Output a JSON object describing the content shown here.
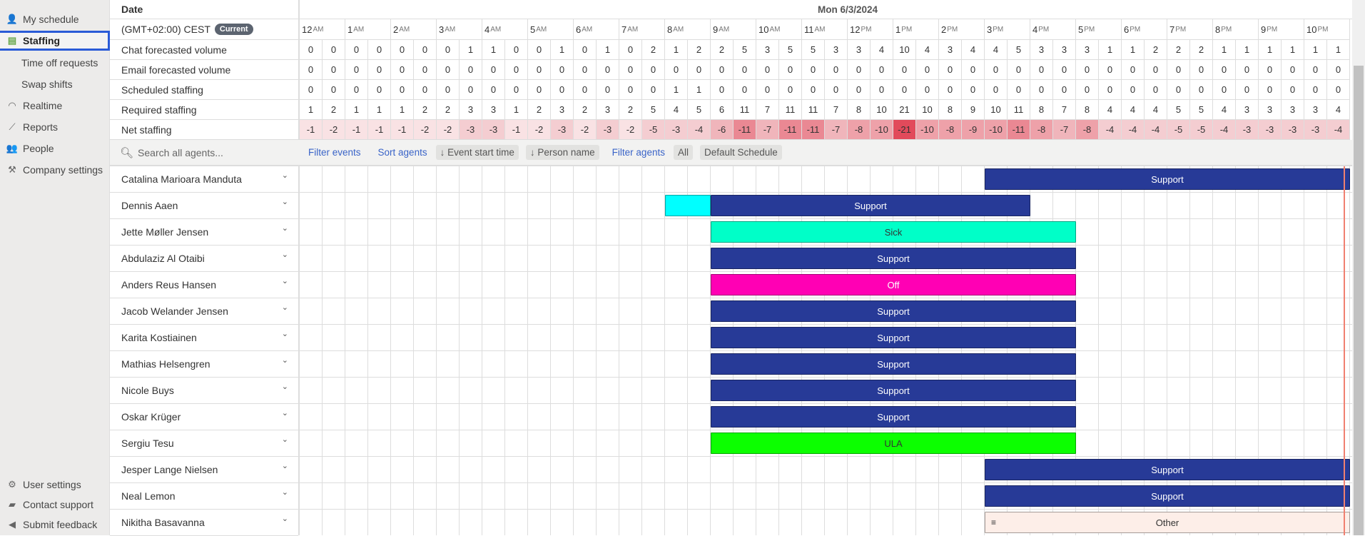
{
  "sidebar": {
    "items": [
      {
        "label": "My schedule",
        "icon": "person-icon",
        "glyph": "👤",
        "sub": false,
        "active": false
      },
      {
        "label": "Staffing",
        "icon": "staffing-icon",
        "glyph": "▤",
        "sub": false,
        "active": true
      },
      {
        "label": "Time off requests",
        "sub": true,
        "active": false
      },
      {
        "label": "Swap shifts",
        "sub": true,
        "active": false
      },
      {
        "label": "Realtime",
        "icon": "gauge-icon",
        "glyph": "◠",
        "sub": false,
        "active": false
      },
      {
        "label": "Reports",
        "icon": "chart-line-icon",
        "glyph": "⟋",
        "sub": false,
        "active": false
      },
      {
        "label": "People",
        "icon": "people-icon",
        "glyph": "👥",
        "sub": false,
        "active": false
      },
      {
        "label": "Company settings",
        "icon": "tools-icon",
        "glyph": "⚒",
        "sub": false,
        "active": false
      }
    ],
    "bottom": [
      {
        "label": "User settings",
        "icon": "gear-icon",
        "glyph": "⚙"
      },
      {
        "label": "Contact support",
        "icon": "chat-icon",
        "glyph": "▰"
      },
      {
        "label": "Submit feedback",
        "icon": "megaphone-icon",
        "glyph": "◀"
      }
    ]
  },
  "header": {
    "date_label": "Date",
    "date": "Mon 6/3/2024",
    "timezone": "(GMT+02:00) CEST",
    "current_badge": "Current"
  },
  "hours": [
    [
      "12",
      "AM"
    ],
    [
      "1",
      "AM"
    ],
    [
      "2",
      "AM"
    ],
    [
      "3",
      "AM"
    ],
    [
      "4",
      "AM"
    ],
    [
      "5",
      "AM"
    ],
    [
      "6",
      "AM"
    ],
    [
      "7",
      "AM"
    ],
    [
      "8",
      "AM"
    ],
    [
      "9",
      "AM"
    ],
    [
      "10",
      "AM"
    ],
    [
      "11",
      "AM"
    ],
    [
      "12",
      "PM"
    ],
    [
      "1",
      "PM"
    ],
    [
      "2",
      "PM"
    ],
    [
      "3",
      "PM"
    ],
    [
      "4",
      "PM"
    ],
    [
      "5",
      "PM"
    ],
    [
      "6",
      "PM"
    ],
    [
      "7",
      "PM"
    ],
    [
      "8",
      "PM"
    ],
    [
      "9",
      "PM"
    ],
    [
      "10",
      "PM"
    ]
  ],
  "metrics": [
    {
      "label": "Chat forecasted volume",
      "values": [
        0,
        0,
        0,
        0,
        0,
        0,
        0,
        1,
        1,
        0,
        0,
        1,
        0,
        1,
        0,
        2,
        1,
        2,
        2,
        5,
        3,
        5,
        5,
        3,
        3,
        4,
        10,
        4,
        3,
        4,
        4,
        5,
        3,
        3,
        3,
        1,
        1,
        2,
        2,
        2,
        1,
        1,
        1,
        1,
        1,
        1
      ]
    },
    {
      "label": "Email forecasted volume",
      "values": [
        0,
        0,
        0,
        0,
        0,
        0,
        0,
        0,
        0,
        0,
        0,
        0,
        0,
        0,
        0,
        0,
        0,
        0,
        0,
        0,
        0,
        0,
        0,
        0,
        0,
        0,
        0,
        0,
        0,
        0,
        0,
        0,
        0,
        0,
        0,
        0,
        0,
        0,
        0,
        0,
        0,
        0,
        0,
        0,
        0,
        0
      ]
    },
    {
      "label": "Scheduled staffing",
      "values": [
        0,
        0,
        0,
        0,
        0,
        0,
        0,
        0,
        0,
        0,
        0,
        0,
        0,
        0,
        0,
        0,
        1,
        1,
        0,
        0,
        0,
        0,
        0,
        0,
        0,
        0,
        0,
        0,
        0,
        0,
        0,
        0,
        0,
        0,
        0,
        0,
        0,
        0,
        0,
        0,
        0,
        0,
        0,
        0,
        0,
        0
      ]
    },
    {
      "label": "Required staffing",
      "values": [
        1,
        2,
        1,
        1,
        1,
        2,
        2,
        3,
        3,
        1,
        2,
        3,
        2,
        3,
        2,
        5,
        4,
        5,
        6,
        11,
        7,
        11,
        11,
        7,
        8,
        10,
        21,
        10,
        8,
        9,
        10,
        11,
        8,
        7,
        8,
        4,
        4,
        4,
        5,
        5,
        4,
        3,
        3,
        3,
        3,
        4
      ]
    },
    {
      "label": "Net staffing",
      "values": [
        -1,
        -2,
        -1,
        -1,
        -1,
        -2,
        -2,
        -3,
        -3,
        -1,
        -2,
        -3,
        -2,
        -3,
        -2,
        -5,
        -3,
        -4,
        -6,
        -11,
        -7,
        -11,
        -11,
        -7,
        -8,
        -10,
        -21,
        -10,
        -8,
        -9,
        -10,
        -11,
        -8,
        -7,
        -8,
        -4,
        -4,
        -4,
        -5,
        -5,
        -4,
        -3,
        -3,
        -3,
        -3,
        -4
      ],
      "heat": true
    }
  ],
  "search": {
    "placeholder": "Search all agents..."
  },
  "toolbar": {
    "filter_events": "Filter events",
    "sort_agents": "Sort agents",
    "sort_chips": [
      "↓ Event start time",
      "↓ Person name"
    ],
    "filter_agents": "Filter agents",
    "filter_chips": [
      "All",
      "Default Schedule"
    ]
  },
  "event_colors": {
    "Support": "#273a97",
    "Sick": "#00ffc8",
    "Off": "#ff00b4",
    "ULA": "#0cff00",
    "Other": "#fdeee8",
    "Break": "#00ffff"
  },
  "current_time": "22:52",
  "agents": [
    {
      "name": "Catalina Marioara Manduta",
      "events": [
        {
          "type": "Support",
          "start": "15:00",
          "end": null
        }
      ]
    },
    {
      "name": "Dennis Aaen",
      "events": [
        {
          "type": "Break",
          "label": "",
          "start": "8:00",
          "end": "9:00"
        },
        {
          "type": "Support",
          "start": "9:00",
          "end": "16:00"
        }
      ]
    },
    {
      "name": "Jette Møller Jensen",
      "events": [
        {
          "type": "Sick",
          "start": "9:00",
          "end": "17:00"
        }
      ]
    },
    {
      "name": "Abdulaziz Al Otaibi",
      "events": [
        {
          "type": "Support",
          "start": "9:00",
          "end": "17:00"
        }
      ]
    },
    {
      "name": "Anders Reus Hansen",
      "events": [
        {
          "type": "Off",
          "start": "9:00",
          "end": "17:00"
        }
      ]
    },
    {
      "name": "Jacob Welander Jensen",
      "events": [
        {
          "type": "Support",
          "start": "9:00",
          "end": "17:00"
        }
      ]
    },
    {
      "name": "Karita Kostiainen",
      "events": [
        {
          "type": "Support",
          "start": "9:00",
          "end": "17:00"
        }
      ]
    },
    {
      "name": "Mathias Helsengren",
      "events": [
        {
          "type": "Support",
          "start": "9:00",
          "end": "17:00"
        }
      ]
    },
    {
      "name": "Nicole Buys",
      "events": [
        {
          "type": "Support",
          "start": "9:00",
          "end": "17:00"
        }
      ]
    },
    {
      "name": "Oskar Krüger",
      "events": [
        {
          "type": "Support",
          "start": "9:00",
          "end": "17:00"
        }
      ]
    },
    {
      "name": "Sergiu Tesu",
      "events": [
        {
          "type": "ULA",
          "start": "9:00",
          "end": "17:00"
        }
      ]
    },
    {
      "name": "Jesper Lange Nielsen",
      "events": [
        {
          "type": "Support",
          "start": "15:00",
          "end": null
        }
      ]
    },
    {
      "name": "Neal Lemon",
      "events": [
        {
          "type": "Support",
          "start": "15:00",
          "end": null
        }
      ]
    },
    {
      "name": "Nikitha Basavanna",
      "events": [
        {
          "type": "Other",
          "start": "15:00",
          "end": null,
          "icon": "notes-icon"
        }
      ]
    }
  ]
}
